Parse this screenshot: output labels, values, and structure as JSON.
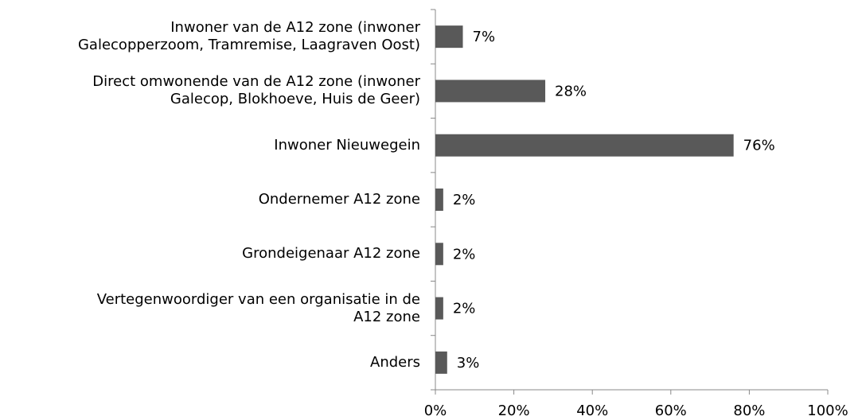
{
  "chart_data": {
    "type": "hbar",
    "categories": [
      "Inwoner van de A12 zone (inwoner\nGalecopperzoom, Tramremise, Laagraven Oost)",
      "Direct omwonende van de A12 zone (inwoner\nGalecop, Blokhoeve, Huis de Geer)",
      "Inwoner Nieuwegein",
      "Ondernemer A12 zone",
      "Grondeigenaar A12 zone",
      "Vertegenwoordiger van een organisatie in de\nA12 zone",
      "Anders"
    ],
    "values": [
      7,
      28,
      76,
      2,
      2,
      2,
      3
    ],
    "value_labels": [
      "7%",
      "28%",
      "76%",
      "2%",
      "2%",
      "2%",
      "3%"
    ],
    "color": "#595959",
    "xlim": [
      0,
      100
    ],
    "xticks": [
      {
        "value": 0,
        "label": "0%"
      },
      {
        "value": 20,
        "label": "20%"
      },
      {
        "value": 40,
        "label": "40%"
      },
      {
        "value": 60,
        "label": "60%"
      },
      {
        "value": 80,
        "label": "80%"
      },
      {
        "value": 100,
        "label": "100%"
      }
    ]
  }
}
